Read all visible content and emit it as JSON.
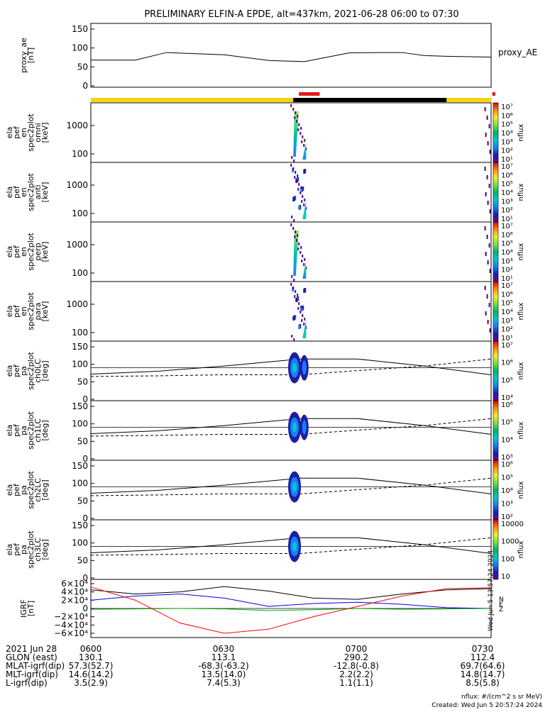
{
  "title": "PRELIMINARY ELFIN-A EPDE, alt=437km, 2021-06-28 06:00 to 07:30",
  "panels": [
    {
      "id": "proxy_ae",
      "ylabel": [
        "proxy_ae",
        "[nT]"
      ],
      "ticks": [
        "150",
        "100",
        "50",
        "0"
      ],
      "legend": "proxy_AE"
    },
    {
      "id": "omni",
      "ylabel": [
        "ela",
        "pef",
        "en",
        "spec2plot",
        "omni",
        "[keV]"
      ],
      "ticks": [
        "1000",
        "100"
      ],
      "zlabel": "nflux",
      "cbar": [
        "10⁷",
        "10⁶",
        "10⁵",
        "10⁴",
        "10³",
        "10²",
        "10¹"
      ]
    },
    {
      "id": "anti",
      "ylabel": [
        "ela",
        "pef",
        "en",
        "spec2plot",
        "anti",
        "[keV]"
      ],
      "ticks": [
        "1000",
        "100"
      ],
      "zlabel": "nflux",
      "cbar": [
        "10⁷",
        "10⁶",
        "10⁵",
        "10⁴",
        "10³",
        "10²",
        "10¹"
      ]
    },
    {
      "id": "perp",
      "ylabel": [
        "ela",
        "pef",
        "en",
        "spec2plot",
        "perp",
        "[keV]"
      ],
      "ticks": [
        "1000",
        "100"
      ],
      "zlabel": "nflux",
      "cbar": [
        "10⁷",
        "10⁶",
        "10⁵",
        "10⁴",
        "10³",
        "10²",
        "10¹"
      ]
    },
    {
      "id": "para",
      "ylabel": [
        "ela",
        "pef",
        "en",
        "spec2plot",
        "para",
        "[keV]"
      ],
      "ticks": [
        "1000",
        "100"
      ],
      "zlabel": "nflux",
      "cbar": [
        "10⁷",
        "10⁶",
        "10⁵",
        "10⁴",
        "10³",
        "10²",
        "10¹"
      ]
    },
    {
      "id": "ch0",
      "ylabel": [
        "ela",
        "pef",
        "pa",
        "spec2plot",
        "ch0LC",
        "[deg]"
      ],
      "ticks": [
        "150",
        "100",
        "50",
        "0"
      ],
      "zlabel": "nflux",
      "cbar": [
        "10⁷",
        "10⁶",
        "10⁵",
        "10⁴"
      ]
    },
    {
      "id": "ch1",
      "ylabel": [
        "ela",
        "pef",
        "pa",
        "spec2plot",
        "ch1LC",
        "[deg]"
      ],
      "ticks": [
        "150",
        "100",
        "50",
        "0"
      ],
      "zlabel": "nflux",
      "cbar": [
        "10⁶",
        "10⁵",
        "10⁴",
        "10³"
      ]
    },
    {
      "id": "ch2",
      "ylabel": [
        "ela",
        "pef",
        "pa",
        "spec2plot",
        "ch2LC",
        "[deg]"
      ],
      "ticks": [
        "150",
        "100",
        "50",
        "0"
      ],
      "zlabel": "nflux",
      "cbar": [
        "10⁶",
        "10⁵",
        "10⁴",
        "10³",
        "10²"
      ]
    },
    {
      "id": "ch3",
      "ylabel": [
        "ela",
        "pef",
        "pa",
        "spec2plot",
        "ch3LC",
        "[deg]"
      ],
      "ticks": [
        "150",
        "100",
        "50",
        "0"
      ],
      "zlabel": "nflux",
      "cbar": [
        "10000",
        "1000",
        "100",
        "10"
      ]
    },
    {
      "id": "igrf",
      "ylabel": [
        "IGRF",
        "[nT]"
      ],
      "ticks": [
        "6×10⁴",
        "4×10⁴",
        "2×10⁴",
        "0",
        "−2×10⁴",
        "−4×10⁴",
        "−6×10⁴"
      ],
      "legend": [
        "N",
        "E",
        "Z"
      ]
    }
  ],
  "footer": {
    "rows": [
      {
        "label": "2021 Jun 28",
        "values": [
          "0600",
          "0630",
          "0700",
          "0730"
        ]
      },
      {
        "label": "GLON (east)",
        "values": [
          "130.1",
          "113.1",
          "290.2",
          "112.4"
        ]
      },
      {
        "label": "MLAT-igrf(dip)",
        "values": [
          "57.3(52.7)",
          "-68.3(-63.2)",
          "-12.8(-0.8)",
          "69.7(64.6)"
        ]
      },
      {
        "label": "MLT-igrf(dip)",
        "values": [
          "14.6(14.2)",
          "13.5(14.0)",
          "2.2(2.2)",
          "14.8(14.7)"
        ]
      },
      {
        "label": "L-igrf(dip)",
        "values": [
          "3.5(2.9)",
          "7.4(5.3)",
          "1.1(1.1)",
          "8.5(5.8)"
        ]
      }
    ],
    "units": "nflux: #/(cm^2 s sr MeV)",
    "created": "Created: Wed Jun  5 20:57:24 2024",
    "vstamp": "Wed Jun  5 13:57:24 2024"
  },
  "colors": {
    "yellow": "#f5d410",
    "black": "#000000",
    "red": "#e31a1c",
    "n": "#000000",
    "e": "#0000ff",
    "z": "#00aa00",
    "igrf_red": "#ff0000"
  },
  "chart_data": {
    "type": "spectrogram-stack",
    "time_range": [
      "06:00",
      "07:30"
    ],
    "proxy_ae": {
      "t_min": [
        0,
        10,
        17,
        30,
        40,
        48,
        55,
        58,
        65,
        70,
        75,
        80,
        90
      ],
      "values": [
        68,
        68,
        88,
        82,
        67,
        64,
        80,
        87,
        88,
        88,
        80,
        78,
        76
      ],
      "ylim": [
        0,
        150
      ]
    },
    "bursts_min": [
      [
        45.2,
        46.4
      ],
      [
        47.6,
        48.4
      ],
      [
        88.5,
        89.5
      ]
    ],
    "science_zones_min": [
      [
        45.5,
        50.5
      ],
      [
        89,
        90
      ]
    ],
    "lc_curve_t_min": [
      0,
      15,
      30,
      47,
      60,
      75,
      90
    ],
    "lc_solid": [
      72,
      80,
      95,
      115,
      115,
      95,
      70
    ],
    "lc_dashed": [
      65,
      67,
      70,
      70,
      82,
      95,
      115
    ],
    "igrf": {
      "t_min": [
        0,
        10,
        20,
        30,
        40,
        50,
        60,
        70,
        80,
        90
      ],
      "N": [
        45000,
        35000,
        40000,
        53000,
        42000,
        25000,
        22000,
        35000,
        45000,
        48000
      ],
      "E": [
        20000,
        30000,
        35000,
        25000,
        5000,
        12000,
        15000,
        10000,
        2000,
        0
      ],
      "Z": [
        -2000,
        -1000,
        0,
        -1000,
        -5000,
        -3000,
        0,
        -2000,
        -1000,
        0
      ],
      "red": [
        52000,
        20000,
        -35000,
        -60000,
        -50000,
        -20000,
        5000,
        30000,
        48000,
        50000
      ],
      "ylim": [
        -60000,
        60000
      ]
    }
  }
}
